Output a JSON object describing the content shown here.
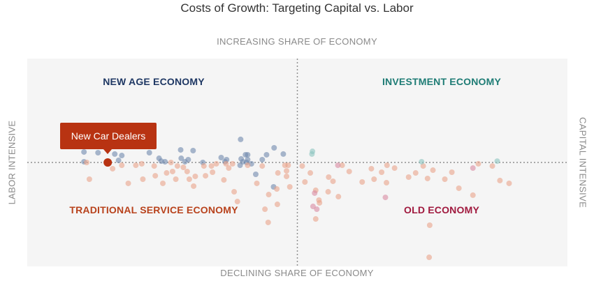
{
  "chart_data": {
    "type": "scatter",
    "title": "Costs of Growth: Targeting Capital vs. Labor",
    "xlabel_top": "INCREASING SHARE OF ECONOMY",
    "xlabel_bottom": "DECLINING SHARE OF ECONOMY",
    "ylabel_left": "LABOR INTENSIVE",
    "ylabel_right": "CAPITAL INTENSIVE",
    "xlim": [
      0,
      100
    ],
    "ylim": [
      -100,
      100
    ],
    "grid": false,
    "quadrants": {
      "top_left": "NEW AGE ECONOMY",
      "top_right": "INVESTMENT ECONOMY",
      "bottom_left": "TRADITIONAL SERVICE ECONOMY",
      "bottom_right": "OLD ECONOMY"
    },
    "highlight": {
      "label": "New Car Dealers",
      "x": 14.9,
      "y": 0
    },
    "colors": {
      "new_age": "#6f89ad",
      "investment": "#8cc4bf",
      "traditional": "#e9a48a",
      "old": "#d88aa2",
      "highlight": "#b83312",
      "divider": "#8f8f8f"
    },
    "series": [
      {
        "key": "new_age",
        "points": [
          [
            10.5,
            10.1
          ],
          [
            10.5,
            0.7
          ],
          [
            13.1,
            9.4
          ],
          [
            16.2,
            8.1
          ],
          [
            16.9,
            2.0
          ],
          [
            17.5,
            6.7
          ],
          [
            22.6,
            9.4
          ],
          [
            24.4,
            4.0
          ],
          [
            24.8,
            1.3
          ],
          [
            25.5,
            0.7
          ],
          [
            28.4,
            12.1
          ],
          [
            28.5,
            4.0
          ],
          [
            29.8,
            2.7
          ],
          [
            29.2,
            0.7
          ],
          [
            30.7,
            11.4
          ],
          [
            32.5,
            0.0
          ],
          [
            36.9,
            2.7
          ],
          [
            36.6,
            0.7
          ],
          [
            39.6,
            3.4
          ],
          [
            39.9,
            0.7
          ],
          [
            40.6,
            0.0
          ],
          [
            39.4,
            -2.7
          ],
          [
            39.5,
            22.2
          ],
          [
            40.8,
            7.4
          ],
          [
            45.7,
            14.1
          ],
          [
            41.5,
            -1.3
          ],
          [
            42.3,
            -11.4
          ],
          [
            45.6,
            -23.5
          ],
          [
            40.4,
            7.4
          ],
          [
            47.4,
            8.1
          ],
          [
            43.5,
            2.7
          ],
          [
            44.3,
            7.4
          ],
          [
            35.9,
            4.7
          ],
          [
            40.8,
            2.7
          ]
        ]
      },
      {
        "key": "traditional",
        "points": [
          [
            11.0,
            0.0
          ],
          [
            11.5,
            -16.1
          ],
          [
            14.8,
            -1.3
          ],
          [
            15.8,
            -6.0
          ],
          [
            17.5,
            -2.7
          ],
          [
            18.7,
            -20.1
          ],
          [
            20.1,
            -2.7
          ],
          [
            21.2,
            -1.3
          ],
          [
            21.4,
            -16.1
          ],
          [
            23.5,
            -3.4
          ],
          [
            23.7,
            -12.8
          ],
          [
            25.1,
            -20.1
          ],
          [
            25.8,
            -10.1
          ],
          [
            26.6,
            0.0
          ],
          [
            26.9,
            -8.7
          ],
          [
            27.5,
            -16.1
          ],
          [
            27.8,
            -3.4
          ],
          [
            28.9,
            -4.7
          ],
          [
            29.6,
            -8.7
          ],
          [
            30.0,
            -16.1
          ],
          [
            30.8,
            -22.8
          ],
          [
            31.1,
            -13.4
          ],
          [
            32.7,
            -3.4
          ],
          [
            33.0,
            -12.8
          ],
          [
            34.3,
            -9.4
          ],
          [
            35.0,
            -1.3
          ],
          [
            36.4,
            -16.8
          ],
          [
            36.8,
            -1.3
          ],
          [
            37.3,
            -5.4
          ],
          [
            38.0,
            -1.3
          ],
          [
            38.3,
            -28.2
          ],
          [
            38.9,
            -37.6
          ],
          [
            40.8,
            -2.7
          ],
          [
            43.5,
            -3.4
          ],
          [
            46.2,
            -25.5
          ],
          [
            46.4,
            -10.1
          ],
          [
            48.0,
            -8.1
          ],
          [
            48.0,
            -13.4
          ],
          [
            48.3,
            -2.7
          ],
          [
            48.6,
            -23.5
          ],
          [
            50.9,
            -3.4
          ],
          [
            51.4,
            -18.8
          ],
          [
            52.4,
            -10.1
          ],
          [
            53.4,
            -26.8
          ],
          [
            34.1,
            -3.4
          ],
          [
            42.5,
            -20.1
          ],
          [
            44.7,
            -30.9
          ],
          [
            46.3,
            -40.3
          ],
          [
            44.6,
            -57.7
          ],
          [
            47.7,
            -2.7
          ],
          [
            55.8,
            -14.1
          ],
          [
            57.6,
            -32.9
          ],
          [
            58.3,
            -2.7
          ],
          [
            59.6,
            -8.7
          ],
          [
            62.0,
            -18.8
          ],
          [
            63.7,
            -6.0
          ],
          [
            64.2,
            -16.1
          ],
          [
            66.5,
            -19.5
          ],
          [
            66.6,
            -2.7
          ],
          [
            68.0,
            -5.4
          ],
          [
            70.6,
            -14.1
          ],
          [
            71.9,
            -10.1
          ],
          [
            73.3,
            -3.4
          ],
          [
            74.1,
            -15.4
          ],
          [
            75.1,
            -7.4
          ],
          [
            77.3,
            -16.1
          ],
          [
            78.6,
            -9.4
          ],
          [
            79.9,
            -24.8
          ],
          [
            82.5,
            -31.5
          ],
          [
            83.5,
            -1.3
          ],
          [
            44.0,
            -45.0
          ],
          [
            65.6,
            -9.4
          ],
          [
            87.5,
            -17.4
          ],
          [
            89.2,
            -20.1
          ],
          [
            56.6,
            -18.1
          ],
          [
            54.0,
            -36.2
          ],
          [
            74.5,
            -60.4
          ],
          [
            74.4,
            -91.3
          ],
          [
            54.1,
            -38.9
          ],
          [
            86.1,
            -3.4
          ],
          [
            55.7,
            -28.2
          ],
          [
            53.4,
            -54.4
          ]
        ]
      },
      {
        "key": "investment",
        "points": [
          [
            52.7,
            8.1
          ],
          [
            52.8,
            10.7
          ],
          [
            73.0,
            0.7
          ],
          [
            87.0,
            1.3
          ]
        ]
      },
      {
        "key": "old",
        "points": [
          [
            53.2,
            -29.5
          ],
          [
            53.6,
            -45.0
          ],
          [
            57.5,
            -2.7
          ],
          [
            66.3,
            -33.6
          ],
          [
            82.5,
            -5.4
          ],
          [
            52.9,
            -42.3
          ]
        ]
      }
    ]
  }
}
